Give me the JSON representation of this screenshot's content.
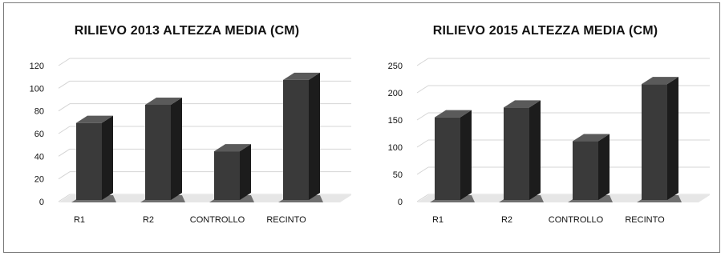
{
  "chart_data": [
    {
      "type": "bar",
      "title": "RILIEVO 2013 ALTEZZA MEDIA (CM)",
      "categories": [
        "R1",
        "R2",
        "CONTROLLO",
        "RECINTO"
      ],
      "values": [
        68,
        84,
        43,
        106
      ],
      "yticks": [
        "0",
        "20",
        "40",
        "60",
        "80",
        "100",
        "120"
      ],
      "ylim": [
        0,
        120
      ],
      "grid": true,
      "style": "3d-column"
    },
    {
      "type": "bar",
      "title": "RILIEVO 2015 ALTEZZA MEDIA (CM)",
      "categories": [
        "R1",
        "R2",
        "CONTROLLO",
        "RECINTO"
      ],
      "values": [
        152,
        170,
        108,
        213
      ],
      "yticks": [
        "0",
        "50",
        "100",
        "150",
        "200",
        "250"
      ],
      "ylim": [
        0,
        250
      ],
      "grid": true,
      "style": "3d-column"
    }
  ],
  "colors": {
    "bar_front": "#3a3a3a",
    "bar_side": "#1c1c1c",
    "bar_top": "#5a5a5a",
    "floor": "#6f6f6f",
    "grid": "#d4d4d4"
  }
}
